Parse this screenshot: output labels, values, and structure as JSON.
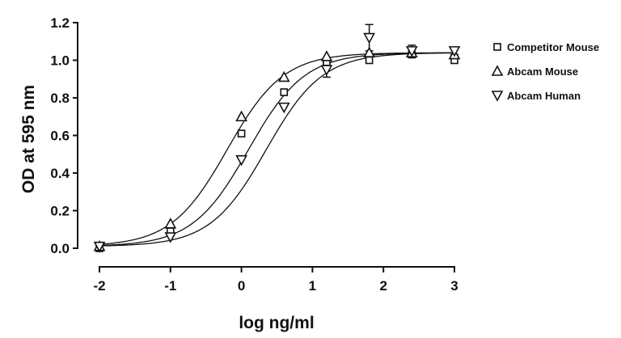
{
  "chart_data": {
    "type": "scatter",
    "xlabel": "log ng/ml",
    "ylabel": "OD at 595 nm",
    "xlim": [
      -2,
      3
    ],
    "ylim": [
      0,
      1.2
    ],
    "x_ticks": [
      "-2",
      "-1",
      "0",
      "1",
      "2",
      "3"
    ],
    "y_ticks": [
      "0.0",
      "0.2",
      "0.4",
      "0.6",
      "0.8",
      "1.0",
      "1.2"
    ],
    "grid": false,
    "legend_position": "right",
    "legend_entries": [
      "Competitor Mouse",
      "Abcam Mouse",
      "Abcam Human"
    ],
    "series": [
      {
        "name": "Competitor Mouse",
        "marker": "square",
        "x": [
          -2,
          -1,
          0,
          0.6,
          1.2,
          1.8,
          2.4,
          3
        ],
        "y": [
          0.0,
          0.09,
          0.61,
          0.83,
          0.99,
          1.0,
          1.03,
          1.0
        ],
        "curve": {
          "bottom": 0.01,
          "top": 1.04,
          "logEC50": 0.1,
          "hill": 1.1
        }
      },
      {
        "name": "Abcam Mouse",
        "marker": "triangle-up",
        "x": [
          -2,
          -1,
          0,
          0.6,
          1.2,
          1.8,
          2.4,
          3
        ],
        "y": [
          0.01,
          0.13,
          0.7,
          0.91,
          1.02,
          1.04,
          1.04,
          1.03
        ],
        "curve": {
          "bottom": 0.01,
          "top": 1.04,
          "logEC50": -0.2,
          "hill": 1.1
        }
      },
      {
        "name": "Abcam Human",
        "marker": "triangle-down",
        "x": [
          -2,
          -1,
          0,
          0.6,
          1.2,
          1.8,
          2.4,
          3
        ],
        "y": [
          0.01,
          0.06,
          0.47,
          0.75,
          0.95,
          1.12,
          1.05,
          1.05
        ],
        "y_err": [
          0,
          0,
          0,
          0,
          0.04,
          0.07,
          0.03,
          0.02
        ],
        "curve": {
          "bottom": 0.01,
          "top": 1.04,
          "logEC50": 0.35,
          "hill": 1.1
        }
      }
    ]
  }
}
